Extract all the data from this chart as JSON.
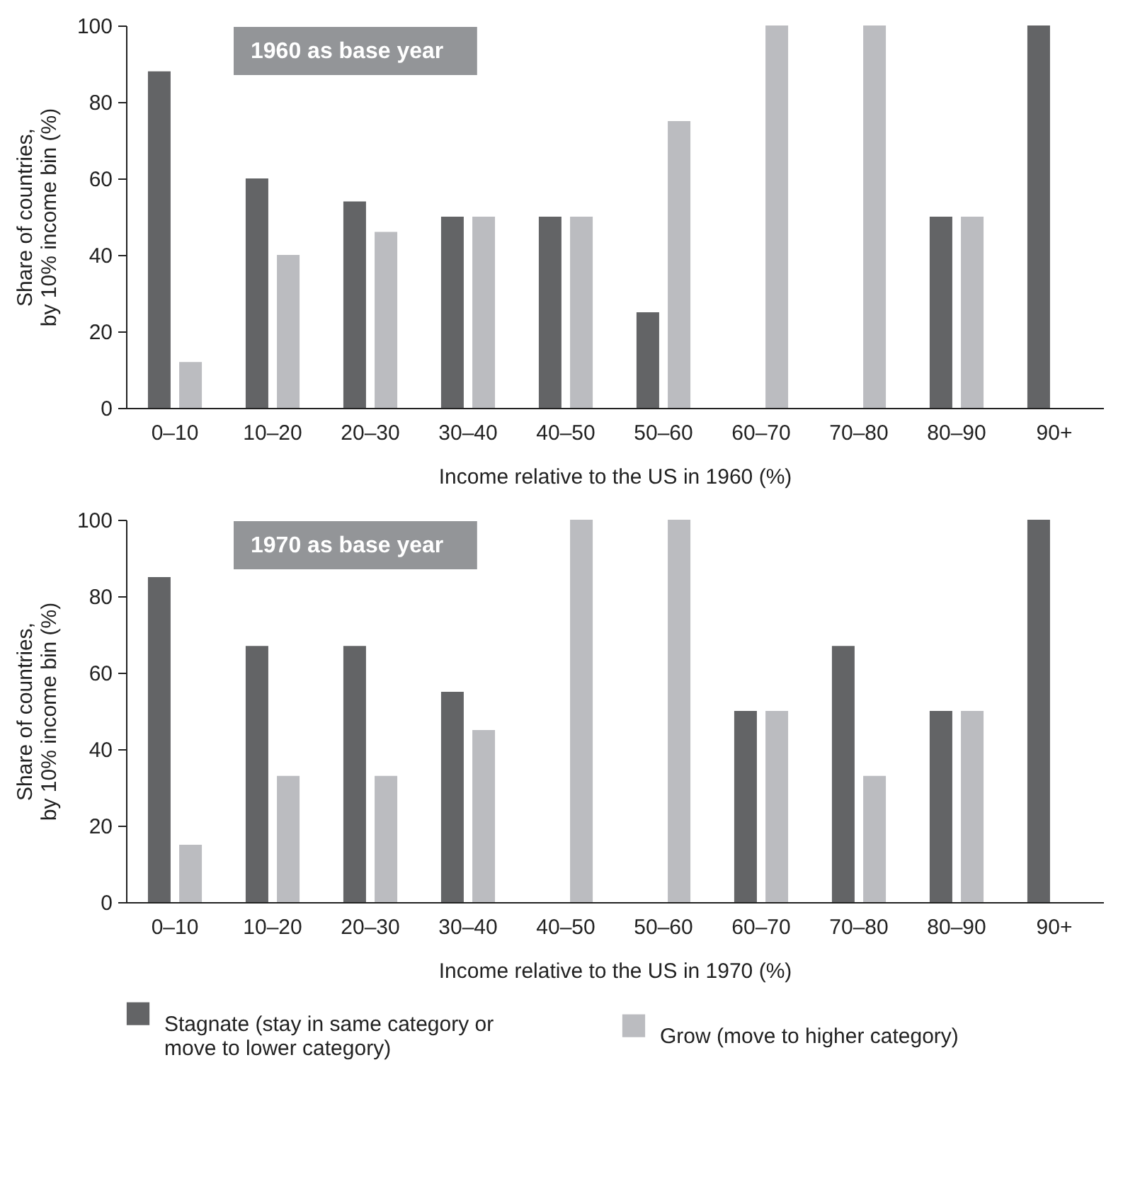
{
  "chart_data": [
    {
      "type": "bar",
      "annotations": [
        "1960 as base year"
      ],
      "xlabel": "Income relative to the US in 1960 (%)",
      "ylabel": "Share of countries, by 10% income bin (%)",
      "categories": [
        "0–10",
        "10–20",
        "20–30",
        "30–40",
        "40–50",
        "50–60",
        "60–70",
        "70–80",
        "80–90",
        "90+"
      ],
      "ylim": [
        0,
        100
      ],
      "yticks": [
        0,
        20,
        40,
        60,
        80,
        100
      ],
      "legend": false,
      "series": [
        {
          "color": "#636466",
          "values": [
            88,
            60,
            54,
            50,
            50,
            25,
            0,
            0,
            50,
            100
          ]
        },
        {
          "color": "#bbbcc0",
          "values": [
            12,
            40,
            46,
            50,
            50,
            75,
            100,
            100,
            50,
            0
          ]
        }
      ]
    },
    {
      "type": "bar",
      "annotations": [
        "1970 as base year"
      ],
      "xlabel": "Income relative to the US in 1970 (%)",
      "ylabel": "Share of countries, by 10% income bin (%)",
      "categories": [
        "0–10",
        "10–20",
        "20–30",
        "30–40",
        "40–50",
        "50–60",
        "60–70",
        "70–80",
        "80–90",
        "90+"
      ],
      "ylim": [
        0,
        100
      ],
      "yticks": [
        0,
        20,
        40,
        60,
        80,
        100
      ],
      "legend": "bottom",
      "series": [
        {
          "name": "Stagnate (stay in same category or move to lower category)",
          "color": "#636466",
          "values": [
            85,
            67,
            67,
            55,
            0,
            0,
            50,
            67,
            50,
            100
          ]
        },
        {
          "name": "Grow (move to higher category)",
          "color": "#bbbcc0",
          "values": [
            15,
            33,
            33,
            45,
            100,
            100,
            50,
            33,
            50,
            0
          ]
        }
      ]
    }
  ]
}
